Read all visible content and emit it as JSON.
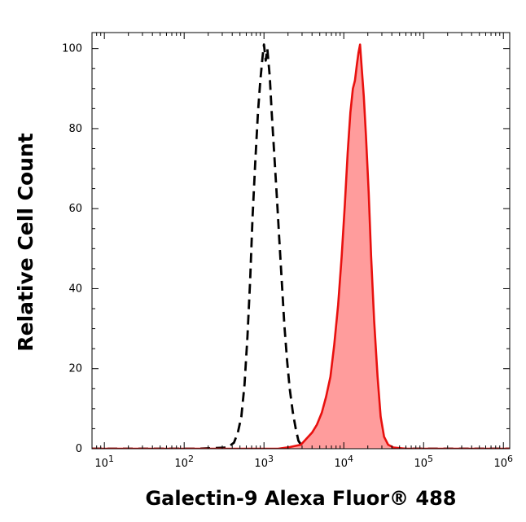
{
  "chart_data": {
    "type": "area",
    "xlabel": "Galectin-9 Alexa Fluor® 488",
    "ylabel": "Relative Cell Count",
    "x_scale": "log",
    "xlim": [
      7,
      1200000
    ],
    "ylim": [
      0,
      104
    ],
    "grid": false,
    "legend": "none",
    "x_ticks": [
      {
        "value": 10,
        "base": "10",
        "exp": "1"
      },
      {
        "value": 100,
        "base": "10",
        "exp": "2"
      },
      {
        "value": 1000,
        "base": "10",
        "exp": "3"
      },
      {
        "value": 10000,
        "base": "10",
        "exp": "4"
      },
      {
        "value": 100000,
        "base": "10",
        "exp": "5"
      },
      {
        "value": 1000000,
        "base": "10",
        "exp": "6"
      }
    ],
    "y_ticks": [
      {
        "value": 0,
        "label": "0"
      },
      {
        "value": 20,
        "label": "20"
      },
      {
        "value": 40,
        "label": "40"
      },
      {
        "value": 60,
        "label": "60"
      },
      {
        "value": 80,
        "label": "80"
      },
      {
        "value": 100,
        "label": "100"
      }
    ],
    "series": [
      {
        "style": "dashed-outline",
        "color": "#000000",
        "points": [
          [
            7,
            0
          ],
          [
            150,
            0
          ],
          [
            350,
            0.3
          ],
          [
            420,
            1.5
          ],
          [
            470,
            4
          ],
          [
            520,
            8
          ],
          [
            570,
            16
          ],
          [
            620,
            28
          ],
          [
            670,
            42
          ],
          [
            720,
            58
          ],
          [
            780,
            72
          ],
          [
            840,
            84
          ],
          [
            900,
            92
          ],
          [
            960,
            98
          ],
          [
            1000,
            101
          ],
          [
            1050,
            97
          ],
          [
            1100,
            100
          ],
          [
            1180,
            93
          ],
          [
            1250,
            84
          ],
          [
            1350,
            73
          ],
          [
            1450,
            63
          ],
          [
            1560,
            52
          ],
          [
            1680,
            41
          ],
          [
            1800,
            31
          ],
          [
            1950,
            22
          ],
          [
            2100,
            15
          ],
          [
            2300,
            9
          ],
          [
            2500,
            5
          ],
          [
            2700,
            2
          ],
          [
            3000,
            0.6
          ],
          [
            3500,
            0
          ],
          [
            1200000,
            0
          ]
        ]
      },
      {
        "style": "filled",
        "color": "#e8100e",
        "fill": "#ff9c9c",
        "points": [
          [
            7,
            0
          ],
          [
            1500,
            0
          ],
          [
            2100,
            0.4
          ],
          [
            2900,
            1
          ],
          [
            3400,
            2.5
          ],
          [
            4000,
            4
          ],
          [
            4600,
            6
          ],
          [
            5300,
            9
          ],
          [
            6000,
            13
          ],
          [
            6800,
            18
          ],
          [
            7600,
            26
          ],
          [
            8500,
            36
          ],
          [
            9400,
            48
          ],
          [
            10300,
            61
          ],
          [
            11200,
            74
          ],
          [
            12100,
            84
          ],
          [
            13000,
            90
          ],
          [
            13800,
            92
          ],
          [
            14600,
            96
          ],
          [
            15300,
            99
          ],
          [
            16000,
            101
          ],
          [
            16800,
            95
          ],
          [
            17800,
            88
          ],
          [
            19000,
            78
          ],
          [
            20500,
            64
          ],
          [
            22000,
            48
          ],
          [
            24000,
            32
          ],
          [
            26500,
            18
          ],
          [
            29000,
            8
          ],
          [
            32000,
            3
          ],
          [
            36000,
            1
          ],
          [
            42000,
            0.3
          ],
          [
            60000,
            0
          ],
          [
            1200000,
            0
          ]
        ]
      }
    ]
  }
}
